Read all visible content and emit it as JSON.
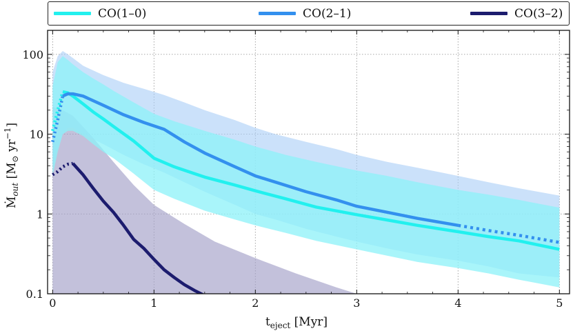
{
  "chart_data": {
    "type": "line",
    "xlabel": "t_eject [Myr]",
    "ylabel": "Ṁ_out [M⊙ yr⁻¹]",
    "xlim": [
      -0.05,
      5.1
    ],
    "ylim": [
      0.1,
      200
    ],
    "yscale": "log",
    "grid": true,
    "legend_position": "top",
    "x_ticks": [
      0,
      1,
      2,
      3,
      4,
      5
    ],
    "x_tick_labels": [
      "0",
      "1",
      "2",
      "3",
      "4",
      "5"
    ],
    "y_ticks": [
      0.1,
      1,
      10,
      100
    ],
    "y_tick_labels": [
      "0.1",
      "1",
      "10",
      "100"
    ],
    "series": [
      {
        "name": "CO(1–0)",
        "color": "#22f0ee",
        "band_color": "#8cf2f8",
        "x": [
          0.0,
          0.05,
          0.1,
          0.15,
          0.2,
          0.3,
          0.4,
          0.5,
          0.6,
          0.8,
          1.0,
          1.2,
          1.5,
          1.8,
          2.0,
          2.3,
          2.6,
          3.0,
          3.3,
          3.6,
          4.0,
          4.3,
          4.6,
          5.0
        ],
        "y": [
          11,
          20,
          34,
          33,
          30,
          24,
          19,
          15.5,
          12.5,
          8.2,
          5.0,
          3.9,
          2.9,
          2.3,
          1.95,
          1.55,
          1.22,
          0.98,
          0.84,
          0.72,
          0.6,
          0.52,
          0.46,
          0.36
        ],
        "dotted_until": 0.1,
        "band_low": [
          3,
          6,
          10,
          11,
          11,
          9.5,
          7.5,
          6,
          5,
          3.2,
          2.0,
          1.55,
          1.1,
          0.85,
          0.72,
          0.58,
          0.46,
          0.36,
          0.3,
          0.25,
          0.21,
          0.18,
          0.15,
          0.12
        ],
        "band_high": [
          40,
          80,
          95,
          85,
          75,
          60,
          50,
          42,
          35,
          25,
          18,
          14.5,
          11,
          8.5,
          7.0,
          5.5,
          4.5,
          3.5,
          3.0,
          2.5,
          2.0,
          1.75,
          1.5,
          1.2
        ]
      },
      {
        "name": "CO(2–1)",
        "color": "#3390ee",
        "band_color": "#a9cdf6",
        "x": [
          0.0,
          0.05,
          0.1,
          0.15,
          0.2,
          0.3,
          0.5,
          0.7,
          0.9,
          1.1,
          1.3,
          1.5,
          1.8,
          2.0,
          2.2,
          2.5,
          2.8,
          3.0,
          3.3,
          3.6,
          4.0,
          4.3,
          4.6,
          5.0
        ],
        "y": [
          8,
          15,
          30,
          32,
          32,
          30,
          23,
          17.5,
          14,
          11.5,
          8.0,
          5.8,
          3.9,
          3.0,
          2.5,
          1.9,
          1.5,
          1.25,
          1.05,
          0.88,
          0.72,
          0.62,
          0.54,
          0.44
        ],
        "dotted_from": 4.0,
        "dotted_until": 0.1,
        "band_low": [
          4,
          7,
          10,
          12,
          12,
          10,
          7.5,
          5.5,
          4.2,
          3.3,
          2.5,
          1.9,
          1.3,
          1.0,
          0.85,
          0.65,
          0.52,
          0.45,
          0.37,
          0.31,
          0.26,
          0.22,
          0.18,
          0.16
        ],
        "band_high": [
          60,
          95,
          110,
          100,
          90,
          72,
          55,
          44,
          37,
          31,
          25,
          20,
          15,
          12,
          10,
          8,
          6.5,
          5.5,
          4.5,
          3.8,
          3.0,
          2.5,
          2.1,
          1.7
        ]
      },
      {
        "name": "CO(3–2)",
        "color": "#1c1c6e",
        "band_color": "#a3a0c8",
        "x": [
          0.0,
          0.05,
          0.1,
          0.15,
          0.2,
          0.3,
          0.4,
          0.5,
          0.6,
          0.7,
          0.8,
          0.9,
          1.0,
          1.1,
          1.2,
          1.3,
          1.4,
          1.5
        ],
        "y": [
          3.1,
          3.4,
          3.9,
          4.2,
          4.3,
          3.1,
          2.1,
          1.45,
          1.05,
          0.72,
          0.48,
          0.37,
          0.27,
          0.2,
          0.16,
          0.13,
          0.11,
          0.095
        ],
        "dotted_until": 0.2,
        "band_x": [
          0.0,
          0.1,
          0.2,
          0.4,
          0.6,
          0.8,
          1.0,
          1.3,
          1.6,
          2.0,
          2.4,
          2.8,
          3.0
        ],
        "band_low": [
          0.1,
          0.1,
          0.1,
          0.1,
          0.1,
          0.1,
          0.1,
          0.1,
          0.1,
          0.1,
          0.1,
          0.1,
          0.1
        ],
        "band_high": [
          22,
          20,
          17,
          9,
          4.5,
          2.3,
          1.3,
          0.75,
          0.45,
          0.28,
          0.18,
          0.12,
          0.1
        ]
      }
    ]
  }
}
